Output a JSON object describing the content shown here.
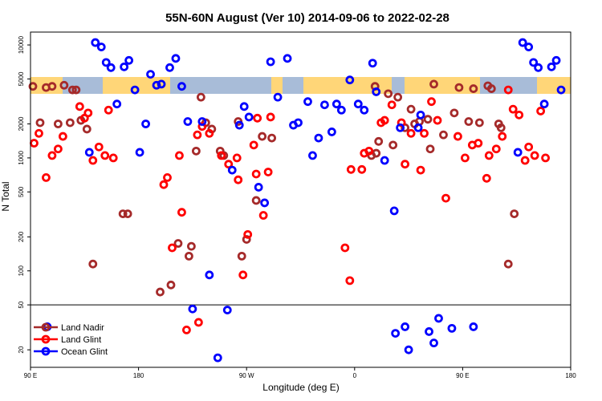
{
  "chart_data": {
    "type": "scatter",
    "title": "55N-60N August (Ver 10)   2014-09-06 to 2022-02-28",
    "xlabel": "Longitude (deg E)",
    "ylabel": "N Total",
    "x_ticks": [
      {
        "value": 90,
        "label": "90 E"
      },
      {
        "value": 180,
        "label": "180"
      },
      {
        "value": 270,
        "label": "90 W"
      },
      {
        "value": 360,
        "label": "0"
      },
      {
        "value": 450,
        "label": "90 E"
      },
      {
        "value": 540,
        "label": "180"
      }
    ],
    "y_ticks": [
      20,
      50,
      100,
      200,
      500,
      1000,
      2000,
      5000,
      10000
    ],
    "y_scale": "log",
    "xlim": [
      90,
      540
    ],
    "ylim": [
      14,
      13000
    ],
    "reference_line": 50,
    "legend_position": "bottom-left",
    "colors": {
      "Land Nadir": "#a52a2a",
      "Land Glint": "#ff0000",
      "Ocean Glint": "#0000ff",
      "land_band": "#ffd678",
      "ocean_band": "#a8bcd8"
    },
    "series": [
      {
        "name": "Land Nadir",
        "points": [
          [
            92,
            4300
          ],
          [
            98,
            2050
          ],
          [
            103,
            4200
          ],
          [
            108,
            4300
          ],
          [
            113,
            2000
          ],
          [
            118,
            4400
          ],
          [
            123,
            2050
          ],
          [
            125,
            4000
          ],
          [
            128,
            4000
          ],
          [
            132,
            2150
          ],
          [
            137,
            1800
          ],
          [
            142,
            115
          ],
          [
            167,
            320
          ],
          [
            171,
            320
          ],
          [
            198,
            65
          ],
          [
            207,
            75
          ],
          [
            213,
            175
          ],
          [
            222,
            135
          ],
          [
            224,
            165
          ],
          [
            228,
            1150
          ],
          [
            232,
            3450
          ],
          [
            236,
            2050
          ],
          [
            241,
            1800
          ],
          [
            248,
            1150
          ],
          [
            251,
            1050
          ],
          [
            263,
            2100
          ],
          [
            266,
            135
          ],
          [
            270,
            190
          ],
          [
            278,
            420
          ],
          [
            283,
            1550
          ],
          [
            291,
            1500
          ],
          [
            374,
            1050
          ],
          [
            377,
            4300
          ],
          [
            378,
            1100
          ],
          [
            380,
            1400
          ],
          [
            388,
            3700
          ],
          [
            392,
            1300
          ],
          [
            396,
            3450
          ],
          [
            402,
            1850
          ],
          [
            407,
            2700
          ],
          [
            410,
            2000
          ],
          [
            414,
            2100
          ],
          [
            421,
            2200
          ],
          [
            423,
            1200
          ],
          [
            426,
            4500
          ],
          [
            434,
            1600
          ],
          [
            443,
            2500
          ],
          [
            447,
            4200
          ],
          [
            455,
            2100
          ],
          [
            459,
            4100
          ],
          [
            464,
            2050
          ],
          [
            471,
            4350
          ],
          [
            474,
            4100
          ],
          [
            480,
            2000
          ],
          [
            482,
            1850
          ],
          [
            488,
            115
          ],
          [
            493,
            320
          ]
        ]
      },
      {
        "name": "Land Glint",
        "points": [
          [
            93,
            1350
          ],
          [
            97,
            1650
          ],
          [
            103,
            670
          ],
          [
            108,
            1050
          ],
          [
            113,
            1200
          ],
          [
            117,
            1550
          ],
          [
            131,
            2850
          ],
          [
            135,
            2250
          ],
          [
            138,
            2500
          ],
          [
            142,
            950
          ],
          [
            147,
            1250
          ],
          [
            152,
            1050
          ],
          [
            155,
            2650
          ],
          [
            159,
            1000
          ],
          [
            201,
            580
          ],
          [
            204,
            670
          ],
          [
            208,
            160
          ],
          [
            214,
            1050
          ],
          [
            216,
            330
          ],
          [
            220,
            30
          ],
          [
            229,
            1600
          ],
          [
            230,
            35
          ],
          [
            233,
            1900
          ],
          [
            239,
            1650
          ],
          [
            249,
            1050
          ],
          [
            255,
            880
          ],
          [
            262,
            1000
          ],
          [
            263,
            640
          ],
          [
            267,
            92
          ],
          [
            271,
            210
          ],
          [
            276,
            1300
          ],
          [
            278,
            720
          ],
          [
            279,
            2250
          ],
          [
            284,
            310
          ],
          [
            288,
            750
          ],
          [
            290,
            2300
          ],
          [
            352,
            160
          ],
          [
            357,
            790
          ],
          [
            356,
            82
          ],
          [
            366,
            790
          ],
          [
            368,
            1100
          ],
          [
            372,
            1150
          ],
          [
            382,
            2050
          ],
          [
            385,
            2150
          ],
          [
            391,
            2950
          ],
          [
            399,
            2050
          ],
          [
            402,
            880
          ],
          [
            407,
            1650
          ],
          [
            415,
            780
          ],
          [
            418,
            1650
          ],
          [
            424,
            3150
          ],
          [
            429,
            2150
          ],
          [
            436,
            440
          ],
          [
            446,
            1550
          ],
          [
            452,
            1000
          ],
          [
            458,
            1300
          ],
          [
            463,
            1350
          ],
          [
            470,
            660
          ],
          [
            472,
            1050
          ],
          [
            478,
            1200
          ],
          [
            483,
            1550
          ],
          [
            488,
            4000
          ],
          [
            492,
            2700
          ],
          [
            497,
            2400
          ],
          [
            502,
            950
          ],
          [
            505,
            1250
          ],
          [
            510,
            1050
          ],
          [
            515,
            2600
          ],
          [
            519,
            1000
          ]
        ]
      },
      {
        "name": "Ocean Glint",
        "points": [
          [
            104,
            32
          ],
          [
            139,
            1120
          ],
          [
            144,
            10500
          ],
          [
            149,
            9600
          ],
          [
            153,
            7000
          ],
          [
            157,
            6300
          ],
          [
            162,
            3000
          ],
          [
            168,
            6400
          ],
          [
            172,
            7300
          ],
          [
            177,
            4000
          ],
          [
            181,
            1120
          ],
          [
            186,
            2000
          ],
          [
            190,
            5500
          ],
          [
            195,
            4400
          ],
          [
            199,
            4500
          ],
          [
            206,
            6300
          ],
          [
            211,
            7600
          ],
          [
            216,
            4300
          ],
          [
            221,
            2100
          ],
          [
            225,
            46
          ],
          [
            233,
            2100
          ],
          [
            239,
            92
          ],
          [
            246,
            17
          ],
          [
            254,
            45
          ],
          [
            258,
            780
          ],
          [
            264,
            1950
          ],
          [
            268,
            2850
          ],
          [
            272,
            2300
          ],
          [
            280,
            550
          ],
          [
            285,
            400
          ],
          [
            290,
            7100
          ],
          [
            296,
            3450
          ],
          [
            304,
            7600
          ],
          [
            309,
            1950
          ],
          [
            313,
            2050
          ],
          [
            321,
            3150
          ],
          [
            325,
            1050
          ],
          [
            330,
            1500
          ],
          [
            335,
            2950
          ],
          [
            341,
            1700
          ],
          [
            345,
            3000
          ],
          [
            349,
            2650
          ],
          [
            356,
            4900
          ],
          [
            363,
            3000
          ],
          [
            368,
            2650
          ],
          [
            375,
            6900
          ],
          [
            378,
            3850
          ],
          [
            385,
            950
          ],
          [
            393,
            340
          ],
          [
            394,
            28
          ],
          [
            398,
            1850
          ],
          [
            402,
            32
          ],
          [
            405,
            20
          ],
          [
            413,
            1850
          ],
          [
            415,
            2400
          ],
          [
            422,
            29
          ],
          [
            426,
            23
          ],
          [
            430,
            38
          ],
          [
            441,
            31
          ],
          [
            459,
            32
          ],
          [
            496,
            1120
          ],
          [
            500,
            10500
          ],
          [
            505,
            9600
          ],
          [
            509,
            7000
          ],
          [
            513,
            6300
          ],
          [
            518,
            3000
          ],
          [
            524,
            6400
          ],
          [
            528,
            7300
          ],
          [
            532,
            4000
          ]
        ]
      }
    ]
  }
}
